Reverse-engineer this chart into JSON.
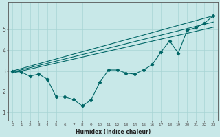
{
  "xlabel": "Humidex (Indice chaleur)",
  "background_color": "#c8e8e8",
  "line_color": "#006666",
  "grid_color": "#a8d4d4",
  "xlim": [
    -0.5,
    23.5
  ],
  "ylim": [
    0.6,
    6.3
  ],
  "xticks": [
    0,
    1,
    2,
    3,
    4,
    5,
    6,
    7,
    8,
    9,
    10,
    11,
    12,
    13,
    14,
    15,
    16,
    17,
    18,
    19,
    20,
    21,
    22,
    23
  ],
  "yticks": [
    1,
    2,
    3,
    4,
    5
  ],
  "zigzag_x": [
    0,
    1,
    2,
    3,
    4,
    5,
    6,
    7,
    8,
    9,
    10,
    11,
    12,
    13,
    14,
    15,
    16,
    17,
    18,
    19,
    20,
    21,
    22,
    23
  ],
  "zigzag_y": [
    3.0,
    2.95,
    2.75,
    2.85,
    2.6,
    1.75,
    1.75,
    1.62,
    1.32,
    1.6,
    2.45,
    3.05,
    3.05,
    2.9,
    2.85,
    3.05,
    3.3,
    3.9,
    4.45,
    3.85,
    4.95,
    5.08,
    5.3,
    5.65
  ],
  "band_line1": [
    [
      0,
      23
    ],
    [
      3.0,
      5.65
    ]
  ],
  "band_line2": [
    [
      0,
      23
    ],
    [
      2.95,
      5.35
    ]
  ],
  "band_line3": [
    [
      0,
      23
    ],
    [
      2.9,
      5.1
    ]
  ]
}
